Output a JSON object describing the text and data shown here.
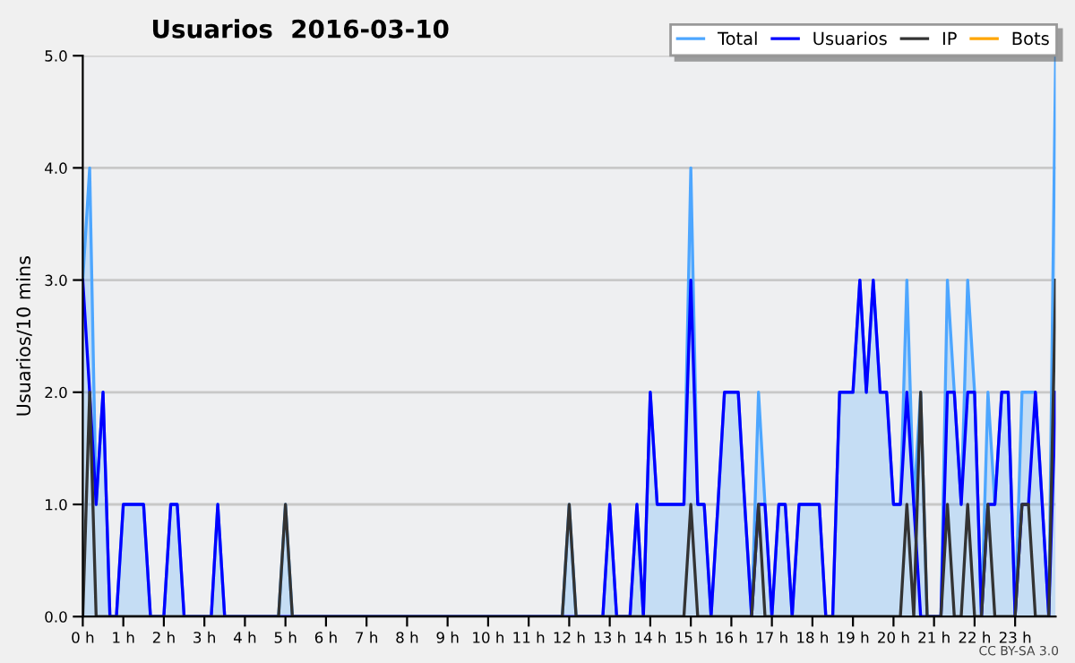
{
  "chart_data": {
    "type": "line",
    "title": "Usuarios  2016-03-10",
    "ylabel": "Usuarios/10 mins",
    "annotations": [
      "CC BY-SA 3.0"
    ],
    "x": [
      0,
      0.17,
      0.33,
      0.5,
      0.67,
      0.83,
      1,
      1.17,
      1.33,
      1.5,
      1.67,
      1.83,
      2,
      2.17,
      2.33,
      2.5,
      2.67,
      2.83,
      3,
      3.17,
      3.33,
      3.5,
      3.67,
      3.83,
      4,
      4.17,
      4.33,
      4.5,
      4.67,
      4.83,
      5,
      5.17,
      5.33,
      5.5,
      5.67,
      5.83,
      6,
      6.17,
      6.33,
      6.5,
      6.67,
      6.83,
      7,
      7.17,
      7.33,
      7.5,
      7.67,
      7.83,
      8,
      8.17,
      8.33,
      8.5,
      8.67,
      8.83,
      9,
      9.17,
      9.33,
      9.5,
      9.67,
      9.83,
      10,
      10.17,
      10.33,
      10.5,
      10.67,
      10.83,
      11,
      11.17,
      11.33,
      11.5,
      11.67,
      11.83,
      12,
      12.17,
      12.33,
      12.5,
      12.67,
      12.83,
      13,
      13.17,
      13.33,
      13.5,
      13.67,
      13.83,
      14,
      14.17,
      14.33,
      14.5,
      14.67,
      14.83,
      15,
      15.17,
      15.33,
      15.5,
      15.67,
      15.83,
      16,
      16.17,
      16.33,
      16.5,
      16.67,
      16.83,
      17,
      17.17,
      17.33,
      17.5,
      17.67,
      17.83,
      18,
      18.17,
      18.33,
      18.5,
      18.67,
      18.83,
      19,
      19.17,
      19.33,
      19.5,
      19.67,
      19.83,
      20,
      20.17,
      20.33,
      20.5,
      20.67,
      20.83,
      21,
      21.17,
      21.33,
      21.5,
      21.67,
      21.83,
      22,
      22.17,
      22.33,
      22.5,
      22.67,
      22.83,
      23,
      23.17,
      23.33,
      23.5,
      23.67,
      23.83,
      24
    ],
    "series": [
      {
        "name": "Total",
        "type": "area",
        "color": "#4da6ff",
        "values": [
          3,
          4,
          1,
          2,
          0,
          0,
          1,
          1,
          1,
          1,
          0,
          0,
          0,
          1,
          1,
          0,
          0,
          0,
          0,
          0,
          1,
          0,
          0,
          0,
          0,
          0,
          0,
          0,
          0,
          0,
          1,
          0,
          0,
          0,
          0,
          0,
          0,
          0,
          0,
          0,
          0,
          0,
          0,
          0,
          0,
          0,
          0,
          0,
          0,
          0,
          0,
          0,
          0,
          0,
          0,
          0,
          0,
          0,
          0,
          0,
          0,
          0,
          0,
          0,
          0,
          0,
          0,
          0,
          0,
          0,
          0,
          0,
          1,
          0,
          0,
          0,
          0,
          0,
          1,
          0,
          0,
          0,
          1,
          0,
          2,
          1,
          1,
          1,
          1,
          1,
          4,
          1,
          1,
          0,
          1,
          2,
          2,
          2,
          1,
          0,
          2,
          1,
          0,
          1,
          1,
          0,
          1,
          1,
          1,
          1,
          0,
          0,
          2,
          2,
          2,
          3,
          2,
          3,
          2,
          2,
          1,
          1,
          3,
          1,
          2,
          0,
          0,
          0,
          3,
          2,
          1,
          3,
          2,
          0,
          2,
          1,
          2,
          2,
          0,
          2,
          2,
          2,
          1,
          0,
          5
        ]
      },
      {
        "name": "Usuarios",
        "color": "#0000ff",
        "values": [
          3,
          2,
          1,
          2,
          0,
          0,
          1,
          1,
          1,
          1,
          0,
          0,
          0,
          1,
          1,
          0,
          0,
          0,
          0,
          0,
          1,
          0,
          0,
          0,
          0,
          0,
          0,
          0,
          0,
          0,
          0,
          0,
          0,
          0,
          0,
          0,
          0,
          0,
          0,
          0,
          0,
          0,
          0,
          0,
          0,
          0,
          0,
          0,
          0,
          0,
          0,
          0,
          0,
          0,
          0,
          0,
          0,
          0,
          0,
          0,
          0,
          0,
          0,
          0,
          0,
          0,
          0,
          0,
          0,
          0,
          0,
          0,
          0,
          0,
          0,
          0,
          0,
          0,
          1,
          0,
          0,
          0,
          1,
          0,
          2,
          1,
          1,
          1,
          1,
          1,
          3,
          1,
          1,
          0,
          1,
          2,
          2,
          2,
          1,
          0,
          1,
          1,
          0,
          1,
          1,
          0,
          1,
          1,
          1,
          1,
          0,
          0,
          2,
          2,
          2,
          3,
          2,
          3,
          2,
          2,
          1,
          1,
          2,
          1,
          0,
          0,
          0,
          0,
          2,
          2,
          1,
          2,
          2,
          0,
          1,
          1,
          2,
          2,
          0,
          1,
          1,
          2,
          1,
          0,
          2
        ]
      },
      {
        "name": "IP",
        "color": "#333333",
        "values": [
          0,
          2,
          0,
          0,
          0,
          0,
          0,
          0,
          0,
          0,
          0,
          0,
          0,
          0,
          0,
          0,
          0,
          0,
          0,
          0,
          0,
          0,
          0,
          0,
          0,
          0,
          0,
          0,
          0,
          0,
          1,
          0,
          0,
          0,
          0,
          0,
          0,
          0,
          0,
          0,
          0,
          0,
          0,
          0,
          0,
          0,
          0,
          0,
          0,
          0,
          0,
          0,
          0,
          0,
          0,
          0,
          0,
          0,
          0,
          0,
          0,
          0,
          0,
          0,
          0,
          0,
          0,
          0,
          0,
          0,
          0,
          0,
          1,
          0,
          0,
          0,
          0,
          0,
          0,
          0,
          0,
          0,
          0,
          0,
          0,
          0,
          0,
          0,
          0,
          0,
          1,
          0,
          0,
          0,
          0,
          0,
          0,
          0,
          0,
          0,
          1,
          0,
          0,
          0,
          0,
          0,
          0,
          0,
          0,
          0,
          0,
          0,
          0,
          0,
          0,
          0,
          0,
          0,
          0,
          0,
          0,
          0,
          1,
          0,
          2,
          0,
          0,
          0,
          1,
          0,
          0,
          1,
          0,
          0,
          1,
          0,
          0,
          0,
          0,
          1,
          1,
          0,
          0,
          0,
          3
        ]
      },
      {
        "name": "Bots",
        "color": "#ffa500",
        "values": [
          null,
          null,
          null,
          null,
          null,
          null,
          null,
          null,
          null,
          null,
          null,
          null,
          null,
          null,
          null,
          null,
          null,
          null,
          null,
          null,
          null,
          null,
          null,
          null,
          null,
          null,
          null,
          null,
          null,
          null,
          null,
          null,
          null,
          null,
          null,
          null,
          null,
          null,
          null,
          null,
          null,
          null,
          null,
          null,
          null,
          null,
          null,
          null,
          null,
          null,
          null,
          null,
          null,
          null,
          null,
          null,
          null,
          null,
          null,
          null,
          null,
          null,
          null,
          null,
          null,
          null,
          null,
          null,
          null,
          null,
          null,
          null,
          null,
          null,
          null,
          null,
          null,
          null,
          null,
          null,
          null,
          null,
          null,
          null,
          null,
          null,
          null,
          null,
          null,
          null,
          null,
          null,
          null,
          null,
          null,
          null,
          null,
          null,
          null,
          null,
          null,
          null,
          null,
          null,
          null,
          null,
          null,
          null,
          null,
          null,
          null,
          null,
          null,
          null,
          null,
          null,
          null,
          null,
          null,
          null,
          null,
          null,
          null,
          null,
          null,
          null,
          null,
          null,
          null,
          null,
          null,
          null,
          null,
          null,
          null,
          null,
          null,
          null,
          null,
          null,
          null,
          null,
          null,
          null,
          null
        ]
      }
    ],
    "xlim": [
      0,
      24
    ],
    "xticks": [
      {
        "value": 0,
        "label": "0 h"
      },
      {
        "value": 1,
        "label": "1 h"
      },
      {
        "value": 2,
        "label": "2 h"
      },
      {
        "value": 3,
        "label": "3 h"
      },
      {
        "value": 4,
        "label": "4 h"
      },
      {
        "value": 5,
        "label": "5 h"
      },
      {
        "value": 6,
        "label": "6 h"
      },
      {
        "value": 7,
        "label": "7 h"
      },
      {
        "value": 8,
        "label": "8 h"
      },
      {
        "value": 9,
        "label": "9 h"
      },
      {
        "value": 10,
        "label": "10 h"
      },
      {
        "value": 11,
        "label": "11 h"
      },
      {
        "value": 12,
        "label": "12 h"
      },
      {
        "value": 13,
        "label": "13 h"
      },
      {
        "value": 14,
        "label": "14 h"
      },
      {
        "value": 15,
        "label": "15 h"
      },
      {
        "value": 16,
        "label": "16 h"
      },
      {
        "value": 17,
        "label": "17 h"
      },
      {
        "value": 18,
        "label": "18 h"
      },
      {
        "value": 19,
        "label": "19 h"
      },
      {
        "value": 20,
        "label": "20 h"
      },
      {
        "value": 21,
        "label": "21 h"
      },
      {
        "value": 22,
        "label": "22 h"
      },
      {
        "value": 23,
        "label": "23 h"
      }
    ],
    "ylim": [
      0,
      5
    ],
    "yticks": [
      {
        "value": 0,
        "label": "0.0"
      },
      {
        "value": 1,
        "label": "1.0"
      },
      {
        "value": 2,
        "label": "2.0"
      },
      {
        "value": 3,
        "label": "3.0"
      },
      {
        "value": 4,
        "label": "4.0"
      },
      {
        "value": 5,
        "label": "5.0"
      }
    ],
    "grid": "y",
    "legend": "top right",
    "marker": "none",
    "line_style": "solid"
  }
}
